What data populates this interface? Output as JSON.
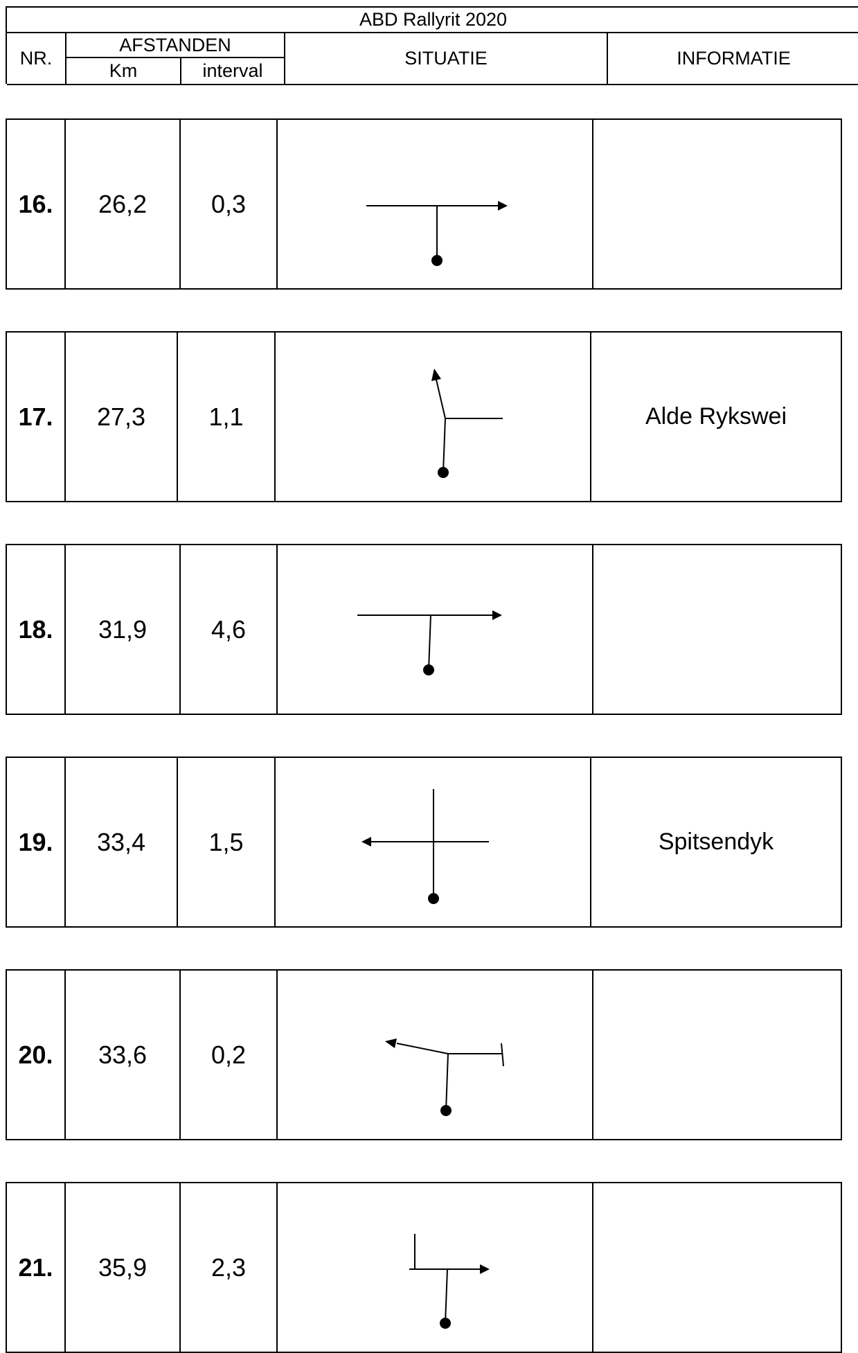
{
  "header": {
    "title": "ABD Rallyrit 2020",
    "nr": "NR.",
    "afstanden": "AFSTANDEN",
    "km": "Km",
    "interval": "interval",
    "situatie": "SITUATIE",
    "informatie": "INFORMATIE"
  },
  "rows": [
    {
      "nr": "16.",
      "km": "26,2",
      "interval": "0,3",
      "info": "",
      "diagram": "t-junction-right-arrow-icon"
    },
    {
      "nr": "17.",
      "km": "27,3",
      "interval": "1,1",
      "info": "Alde Rykswei",
      "diagram": "fork-left-up-arrow-icon"
    },
    {
      "nr": "18.",
      "km": "31,9",
      "interval": "4,6",
      "info": "",
      "diagram": "t-junction-right-arrow-icon"
    },
    {
      "nr": "19.",
      "km": "33,4",
      "interval": "1,5",
      "info": "Spitsendyk",
      "diagram": "crossroads-left-arrow-icon"
    },
    {
      "nr": "20.",
      "km": "33,6",
      "interval": "0,2",
      "info": "",
      "diagram": "t-junction-left-arrow-icon"
    },
    {
      "nr": "21.",
      "km": "35,9",
      "interval": "2,3",
      "info": "",
      "diagram": "t-junction-right-arrow-icon"
    }
  ]
}
